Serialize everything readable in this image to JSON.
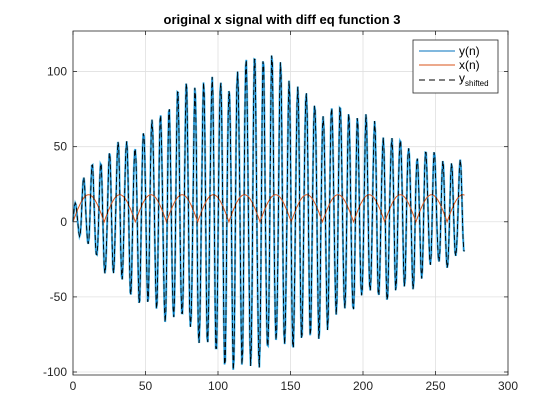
{
  "chart_data": {
    "type": "line",
    "title": "original x  signal with diff eq function 3",
    "xlabel": "",
    "ylabel": "",
    "xlim": [
      0,
      300
    ],
    "ylim": [
      -102,
      127
    ],
    "x_ticks": [
      0,
      50,
      100,
      150,
      200,
      250,
      300
    ],
    "y_ticks": [
      -100,
      -50,
      0,
      50,
      100
    ],
    "grid": true,
    "legend_position": "top-right",
    "n_samples": [
      0,
      270
    ],
    "series": [
      {
        "name": "y(n)",
        "color": "#0072BD",
        "style": "solid",
        "envelope_points": [
          [
            0,
            8
          ],
          [
            10,
            25
          ],
          [
            25,
            40
          ],
          [
            50,
            58
          ],
          [
            75,
            78
          ],
          [
            100,
            92
          ],
          [
            125,
            104
          ],
          [
            140,
            95
          ],
          [
            160,
            82
          ],
          [
            180,
            70
          ],
          [
            200,
            60
          ],
          [
            225,
            50
          ],
          [
            250,
            36
          ],
          [
            270,
            30
          ]
        ],
        "carrier_period_samples": 5.9
      },
      {
        "name": "x(n)",
        "color": "#D95319",
        "style": "solid",
        "approx_range": [
          0,
          18
        ],
        "notch_period_samples": 21.5
      },
      {
        "name": "y_shifted",
        "label_main": "y",
        "label_sub": "shifted",
        "color": "#000000",
        "style": "dashed"
      }
    ],
    "colors": {
      "y_fill": "#4DBEEE"
    }
  }
}
